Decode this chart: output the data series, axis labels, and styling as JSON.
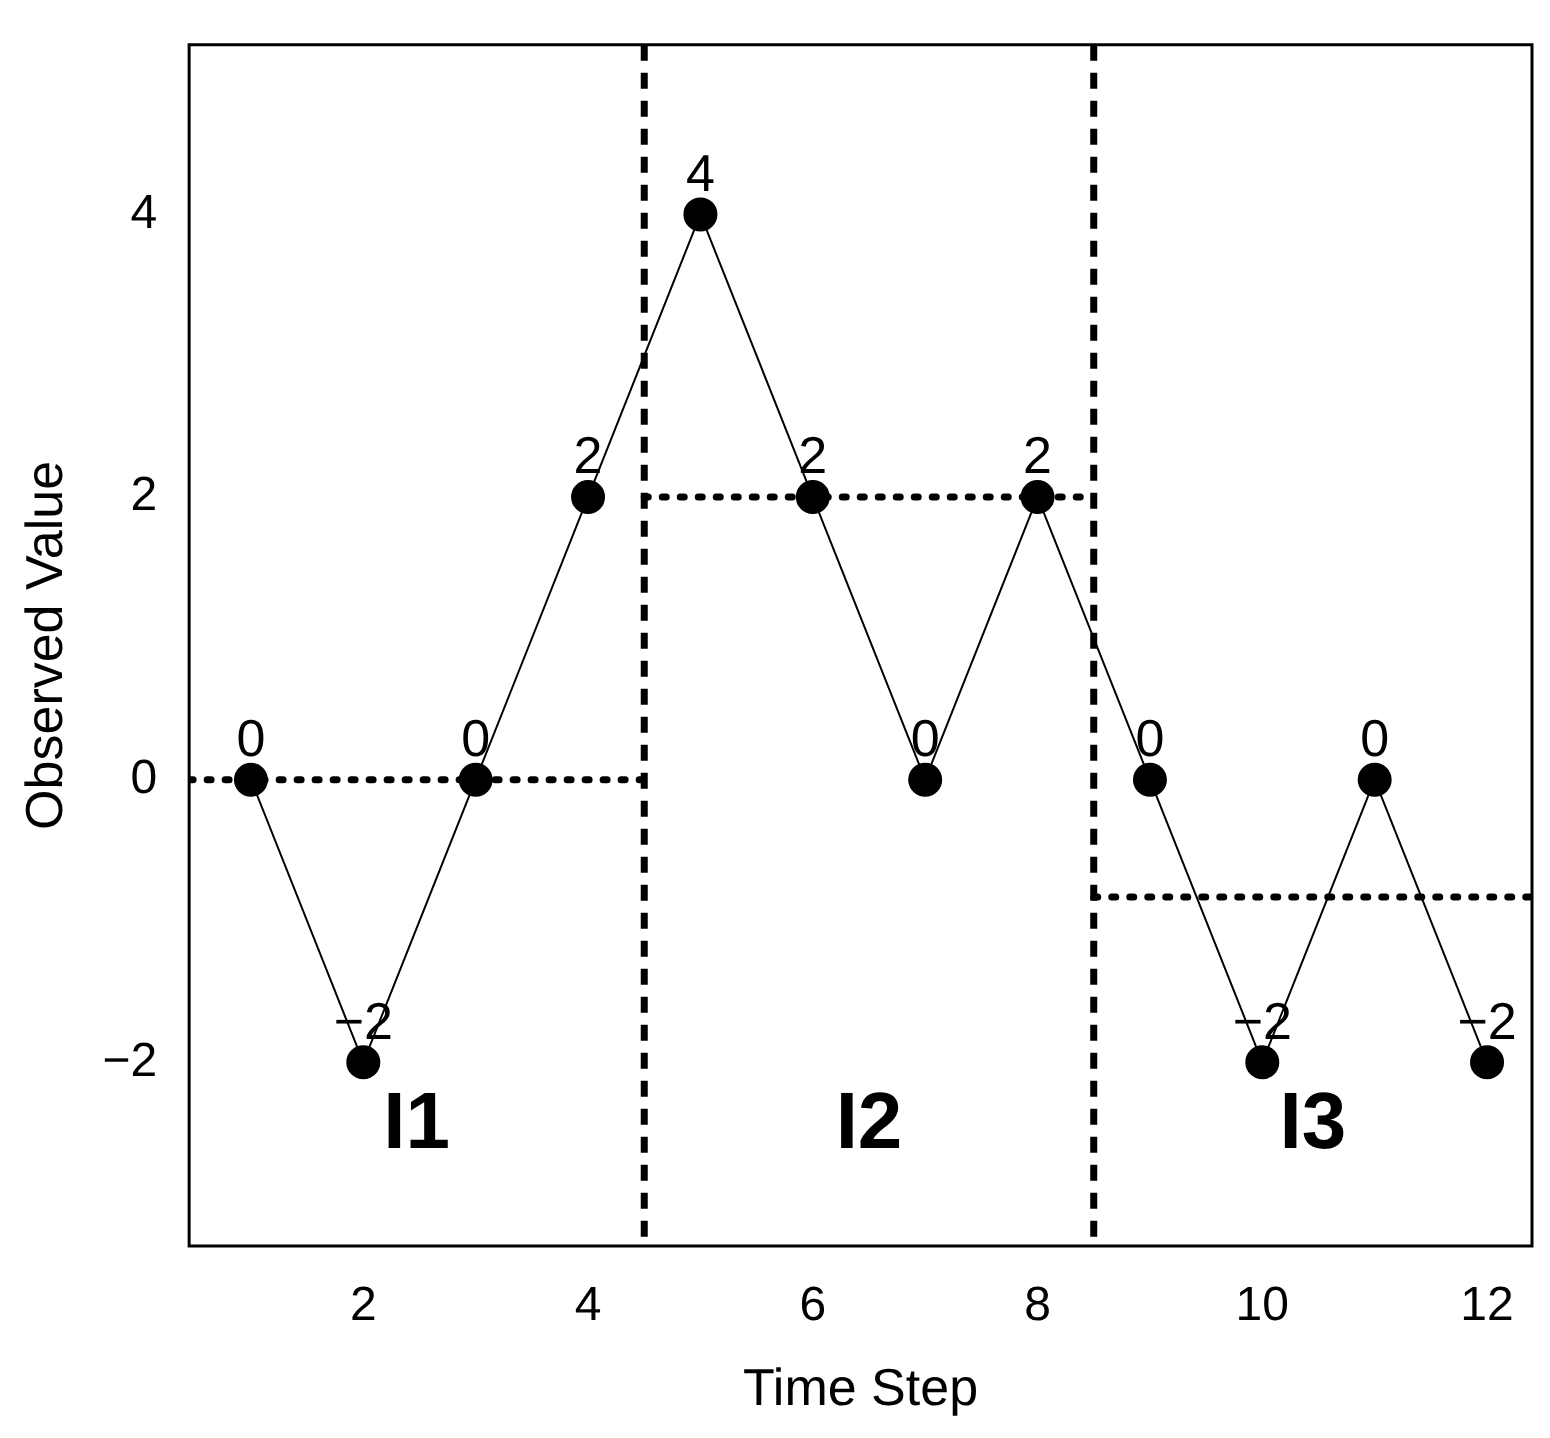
{
  "chart_data": {
    "type": "line",
    "xlabel": "Time Step",
    "ylabel": "Observed Value",
    "xlim": [
      0.45,
      12.4
    ],
    "xticks": [
      2,
      4,
      6,
      8,
      10,
      12
    ],
    "ylim": [
      -3.3,
      5.2
    ],
    "yticks": [
      -2,
      0,
      2,
      4
    ],
    "grid": false,
    "legend": false,
    "series": [
      {
        "color": "#000000",
        "marker": "circle",
        "line_style": "solid",
        "x": [
          1,
          2,
          3,
          4,
          5,
          6,
          7,
          8,
          9,
          10,
          11,
          12
        ],
        "values": [
          0,
          -2,
          0,
          2,
          4,
          2,
          0,
          2,
          0,
          -2,
          0,
          -2
        ],
        "value_labels": [
          "0",
          "−2",
          "0",
          "2",
          "4",
          "2",
          "0",
          "2",
          "0",
          "−2",
          "0",
          "−2"
        ]
      },
      {
        "color": "#000000",
        "marker": "none",
        "line_style": "dotted",
        "x": [
          0.45,
          4.5
        ],
        "values": [
          0,
          0
        ]
      },
      {
        "color": "#000000",
        "marker": "none",
        "line_style": "dotted",
        "x": [
          4.5,
          8.5
        ],
        "values": [
          2,
          2
        ]
      },
      {
        "color": "#000000",
        "marker": "none",
        "line_style": "dotted",
        "x": [
          8.5,
          12.4
        ],
        "values": [
          -0.83,
          -0.83
        ]
      }
    ],
    "ref_lines": [
      {
        "axis": "x",
        "value": 4.5,
        "line_style": "dashed",
        "color": "#000000"
      },
      {
        "axis": "x",
        "value": 8.5,
        "line_style": "dashed",
        "color": "#000000"
      }
    ],
    "annotations": [
      "I1",
      "I2",
      "I3"
    ]
  }
}
